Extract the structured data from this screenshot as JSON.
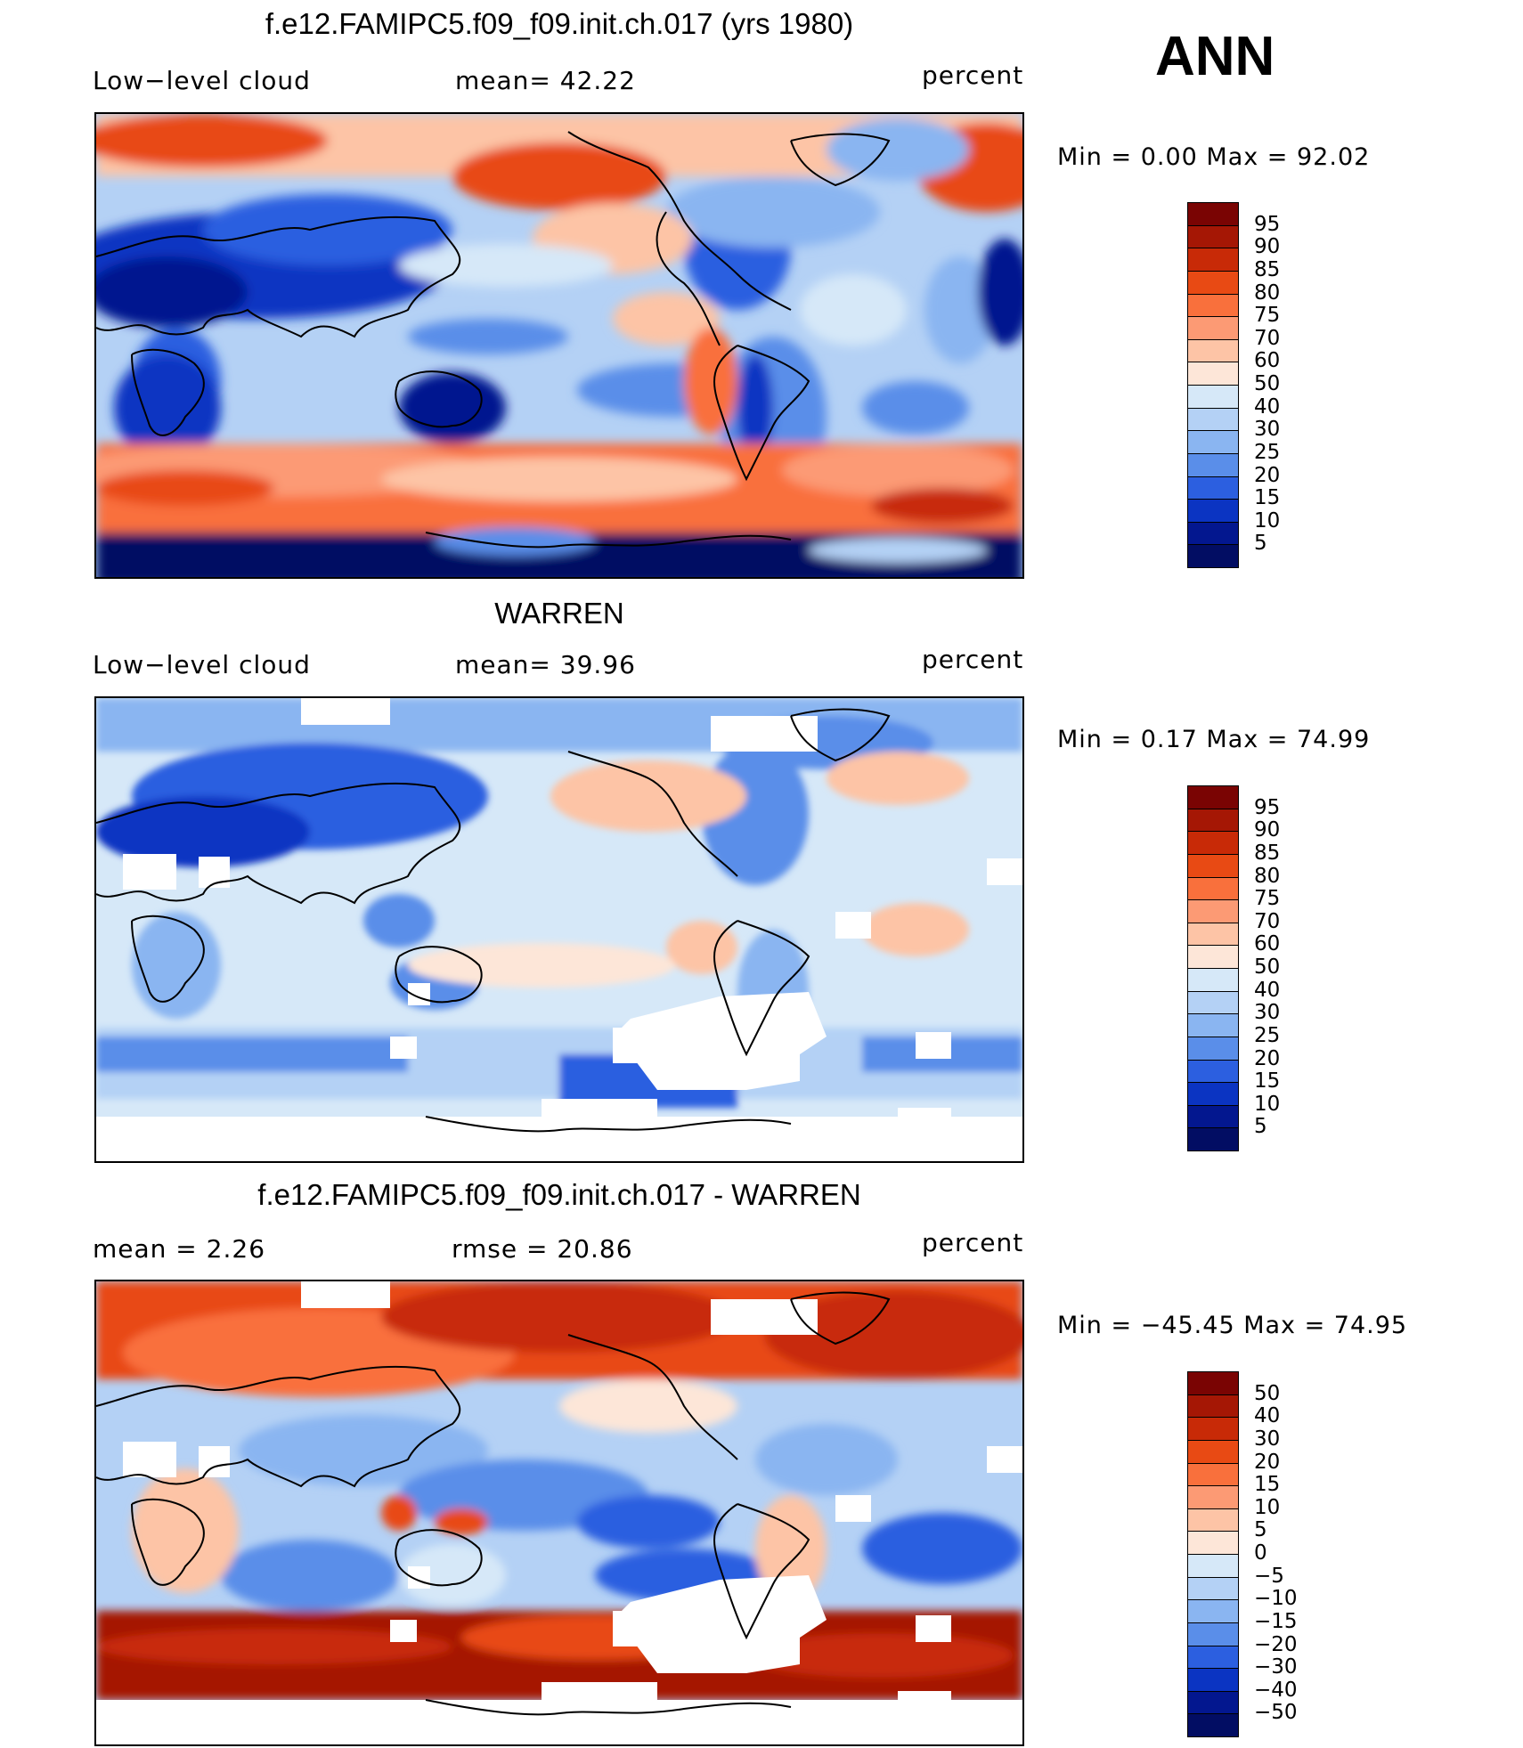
{
  "season": "ANN",
  "panels": [
    {
      "title": "f.e12.FAMIPC5.f09_f09.init.ch.017 (yrs 1980)",
      "left_label": "Low−level cloud",
      "mid_label": "mean=   42.22",
      "right_label": "percent",
      "minmax": "Min  =     0.00  Max  =    92.02",
      "colorbar_labels": [
        "95",
        "90",
        "85",
        "80",
        "75",
        "70",
        "60",
        "50",
        "40",
        "30",
        "25",
        "20",
        "15",
        "10",
        "5"
      ],
      "colors": [
        "#7a0403",
        "#a51705",
        "#c82a07",
        "#e84a14",
        "#f9703c",
        "#fc9a74",
        "#fdc4a6",
        "#fde6d8",
        "#d6e8f8",
        "#b4d1f5",
        "#8ab5f1",
        "#5a8ee9",
        "#2c5fe0",
        "#0b34c2",
        "#03178f",
        "#020d63"
      ]
    },
    {
      "title": "WARREN",
      "left_label": "Low−level cloud",
      "mid_label": "mean=   39.96",
      "right_label": "percent",
      "minmax": "Min  =     0.17  Max  =    74.99",
      "colorbar_labels": [
        "95",
        "90",
        "85",
        "80",
        "75",
        "70",
        "60",
        "50",
        "40",
        "30",
        "25",
        "20",
        "15",
        "10",
        "5"
      ],
      "colors": [
        "#7a0403",
        "#a51705",
        "#c82a07",
        "#e84a14",
        "#f9703c",
        "#fc9a74",
        "#fdc4a6",
        "#fde6d8",
        "#d6e8f8",
        "#b4d1f5",
        "#8ab5f1",
        "#5a8ee9",
        "#2c5fe0",
        "#0b34c2",
        "#03178f",
        "#020d63"
      ]
    },
    {
      "title": "f.e12.FAMIPC5.f09_f09.init.ch.017 - WARREN",
      "left_label": "mean =     2.26",
      "mid_label": "rmse  =    20.86",
      "right_label": "percent",
      "minmax": "Min  =  −45.45  Max  =    74.95",
      "colorbar_labels": [
        "50",
        "40",
        "30",
        "20",
        "15",
        "10",
        "5",
        "0",
        "−5",
        "−10",
        "−15",
        "−20",
        "−30",
        "−40",
        "−50"
      ],
      "colors": [
        "#7a0403",
        "#a51705",
        "#c82a07",
        "#e84a14",
        "#f9703c",
        "#fc9a74",
        "#fdc4a6",
        "#fde6d8",
        "#d6e8f8",
        "#b4d1f5",
        "#8ab5f1",
        "#5a8ee9",
        "#2c5fe0",
        "#0b34c2",
        "#03178f",
        "#020d63"
      ]
    }
  ]
}
